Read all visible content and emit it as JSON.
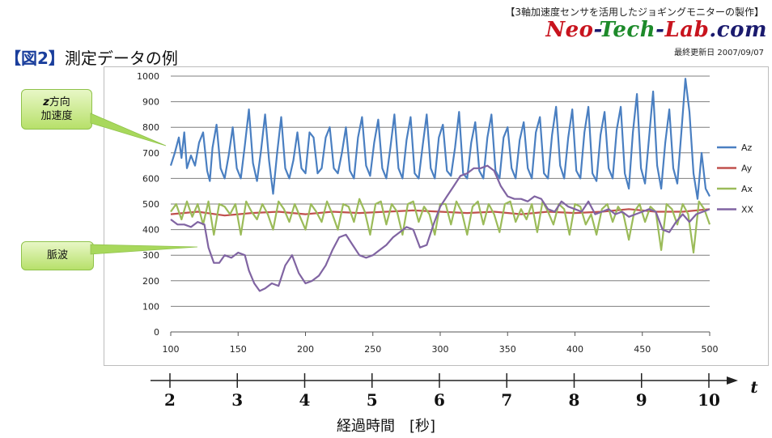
{
  "header": {
    "subtitle": "【3軸加速度センサを活用したジョギングモニターの製作】",
    "site_neo": "Neo",
    "site_tech": "Tech",
    "site_lab": "Lab",
    "site_com": ".com",
    "site_dash": "-",
    "updated": "最終更新日 2007/09/07"
  },
  "figure": {
    "tag": "【図2】",
    "title": "測定データの例"
  },
  "callouts": {
    "accel_z_line1_em": "z",
    "accel_z_line1": "方向",
    "accel_z_line2": "加速度",
    "pulse": "脈波"
  },
  "timeline": {
    "ticks": [
      "2",
      "3",
      "4",
      "5",
      "6",
      "7",
      "8",
      "9",
      "10"
    ],
    "axis_symbol": "t",
    "title": "経過時間　[秒]"
  },
  "colors": {
    "Az": "#4a7fc1",
    "Ay": "#c0504d",
    "Ax": "#9bbb59",
    "XX": "#8064a2",
    "grid": "#7f7f7f"
  },
  "chart_data": {
    "type": "line",
    "xlim": [
      100,
      500
    ],
    "ylim": [
      0,
      1000
    ],
    "xticks": [
      100,
      150,
      200,
      250,
      300,
      350,
      400,
      450,
      500
    ],
    "yticks": [
      0,
      100,
      200,
      300,
      400,
      500,
      600,
      700,
      800,
      900,
      1000
    ],
    "legend_position": "right",
    "grid": true,
    "series": [
      {
        "name": "Az",
        "color": "#4a7fc1",
        "x": [
          100,
          103,
          106,
          108,
          110,
          112,
          115,
          118,
          121,
          124,
          127,
          129,
          131,
          134,
          137,
          140,
          143,
          146,
          149,
          152,
          155,
          158,
          161,
          164,
          167,
          170,
          173,
          176,
          179,
          182,
          185,
          188,
          191,
          194,
          197,
          200,
          203,
          206,
          209,
          212,
          215,
          218,
          221,
          224,
          227,
          230,
          233,
          236,
          239,
          242,
          245,
          248,
          251,
          254,
          257,
          260,
          263,
          266,
          269,
          272,
          275,
          278,
          281,
          284,
          287,
          290,
          293,
          296,
          299,
          302,
          305,
          308,
          311,
          314,
          317,
          320,
          323,
          326,
          329,
          332,
          335,
          338,
          341,
          344,
          347,
          350,
          353,
          356,
          359,
          362,
          365,
          368,
          371,
          374,
          377,
          380,
          383,
          386,
          389,
          392,
          395,
          398,
          401,
          404,
          407,
          410,
          413,
          416,
          419,
          422,
          425,
          428,
          431,
          434,
          437,
          440,
          443,
          446,
          449,
          452,
          455,
          458,
          461,
          464,
          467,
          470,
          473,
          476,
          479,
          482,
          485,
          488,
          491,
          494,
          497,
          500
        ],
        "y": [
          650,
          700,
          760,
          680,
          780,
          640,
          690,
          650,
          740,
          780,
          630,
          590,
          720,
          810,
          640,
          600,
          690,
          800,
          640,
          600,
          730,
          870,
          660,
          590,
          710,
          850,
          670,
          540,
          700,
          840,
          640,
          600,
          670,
          780,
          640,
          620,
          780,
          760,
          620,
          640,
          760,
          800,
          640,
          620,
          700,
          800,
          630,
          600,
          760,
          840,
          650,
          610,
          740,
          830,
          640,
          600,
          720,
          850,
          640,
          600,
          750,
          840,
          620,
          600,
          730,
          850,
          640,
          600,
          760,
          810,
          630,
          610,
          720,
          860,
          620,
          600,
          740,
          820,
          630,
          600,
          760,
          850,
          630,
          600,
          760,
          800,
          640,
          600,
          750,
          820,
          640,
          600,
          780,
          840,
          620,
          600,
          770,
          880,
          650,
          600,
          760,
          870,
          630,
          600,
          780,
          880,
          620,
          590,
          770,
          860,
          640,
          600,
          790,
          880,
          620,
          560,
          780,
          930,
          640,
          580,
          760,
          940,
          650,
          560,
          740,
          870,
          640,
          580,
          780,
          990,
          860,
          620,
          520,
          700,
          560,
          530
        ]
      },
      {
        "name": "Ay",
        "color": "#c0504d",
        "x": [
          100,
          120,
          140,
          160,
          180,
          200,
          220,
          240,
          260,
          280,
          300,
          320,
          340,
          360,
          380,
          400,
          420,
          440,
          460,
          480,
          500
        ],
        "y": [
          460,
          470,
          455,
          465,
          470,
          460,
          470,
          465,
          470,
          475,
          470,
          465,
          470,
          460,
          470,
          465,
          470,
          480,
          470,
          470,
          480
        ]
      },
      {
        "name": "Ax",
        "color": "#9bbb59",
        "x": [
          100,
          104,
          108,
          112,
          116,
          120,
          124,
          128,
          132,
          136,
          140,
          144,
          148,
          152,
          156,
          160,
          164,
          168,
          172,
          176,
          180,
          184,
          188,
          192,
          196,
          200,
          204,
          208,
          212,
          216,
          220,
          224,
          228,
          232,
          236,
          240,
          244,
          248,
          252,
          256,
          260,
          264,
          268,
          272,
          276,
          280,
          284,
          288,
          292,
          296,
          300,
          304,
          308,
          312,
          316,
          320,
          324,
          328,
          332,
          336,
          340,
          344,
          348,
          352,
          356,
          360,
          364,
          368,
          372,
          376,
          380,
          384,
          388,
          392,
          396,
          400,
          404,
          408,
          412,
          416,
          420,
          424,
          428,
          432,
          436,
          440,
          444,
          448,
          452,
          456,
          460,
          464,
          468,
          472,
          476,
          480,
          484,
          488,
          492,
          496,
          500
        ],
        "y": [
          470,
          500,
          440,
          510,
          450,
          500,
          420,
          510,
          380,
          500,
          490,
          460,
          500,
          380,
          510,
          470,
          440,
          500,
          460,
          400,
          510,
          480,
          430,
          500,
          450,
          400,
          500,
          470,
          430,
          510,
          460,
          400,
          500,
          490,
          430,
          520,
          470,
          380,
          500,
          510,
          420,
          500,
          470,
          380,
          500,
          510,
          430,
          490,
          460,
          380,
          500,
          500,
          420,
          510,
          470,
          380,
          490,
          510,
          420,
          500,
          460,
          390,
          500,
          510,
          430,
          480,
          440,
          500,
          390,
          510,
          470,
          420,
          500,
          480,
          380,
          500,
          490,
          420,
          460,
          380,
          480,
          500,
          430,
          490,
          460,
          360,
          470,
          500,
          430,
          490,
          470,
          320,
          500,
          480,
          420,
          500,
          460,
          310,
          510,
          480,
          420
        ]
      },
      {
        "name": "XX",
        "color": "#8064a2",
        "x": [
          100,
          105,
          110,
          115,
          120,
          125,
          128,
          132,
          136,
          140,
          145,
          150,
          155,
          158,
          162,
          166,
          170,
          175,
          180,
          185,
          190,
          195,
          200,
          205,
          210,
          215,
          220,
          225,
          230,
          235,
          240,
          245,
          250,
          255,
          260,
          265,
          270,
          275,
          280,
          285,
          290,
          295,
          300,
          305,
          310,
          315,
          320,
          325,
          330,
          335,
          340,
          345,
          350,
          355,
          360,
          365,
          370,
          375,
          380,
          385,
          390,
          395,
          400,
          405,
          410,
          415,
          420,
          425,
          430,
          435,
          440,
          445,
          450,
          455,
          460,
          465,
          470,
          475,
          480,
          485,
          490,
          495,
          500
        ],
        "y": [
          440,
          420,
          420,
          410,
          430,
          420,
          330,
          270,
          270,
          300,
          290,
          310,
          300,
          240,
          190,
          160,
          170,
          190,
          180,
          260,
          300,
          230,
          190,
          200,
          220,
          260,
          320,
          370,
          380,
          340,
          300,
          290,
          300,
          320,
          340,
          370,
          390,
          410,
          400,
          330,
          340,
          420,
          490,
          530,
          570,
          610,
          620,
          640,
          640,
          650,
          630,
          570,
          530,
          520,
          520,
          510,
          530,
          520,
          480,
          470,
          510,
          490,
          480,
          470,
          510,
          460,
          470,
          480,
          460,
          470,
          450,
          460,
          470,
          480,
          470,
          400,
          390,
          430,
          460,
          430,
          460,
          470,
          480
        ]
      }
    ]
  }
}
